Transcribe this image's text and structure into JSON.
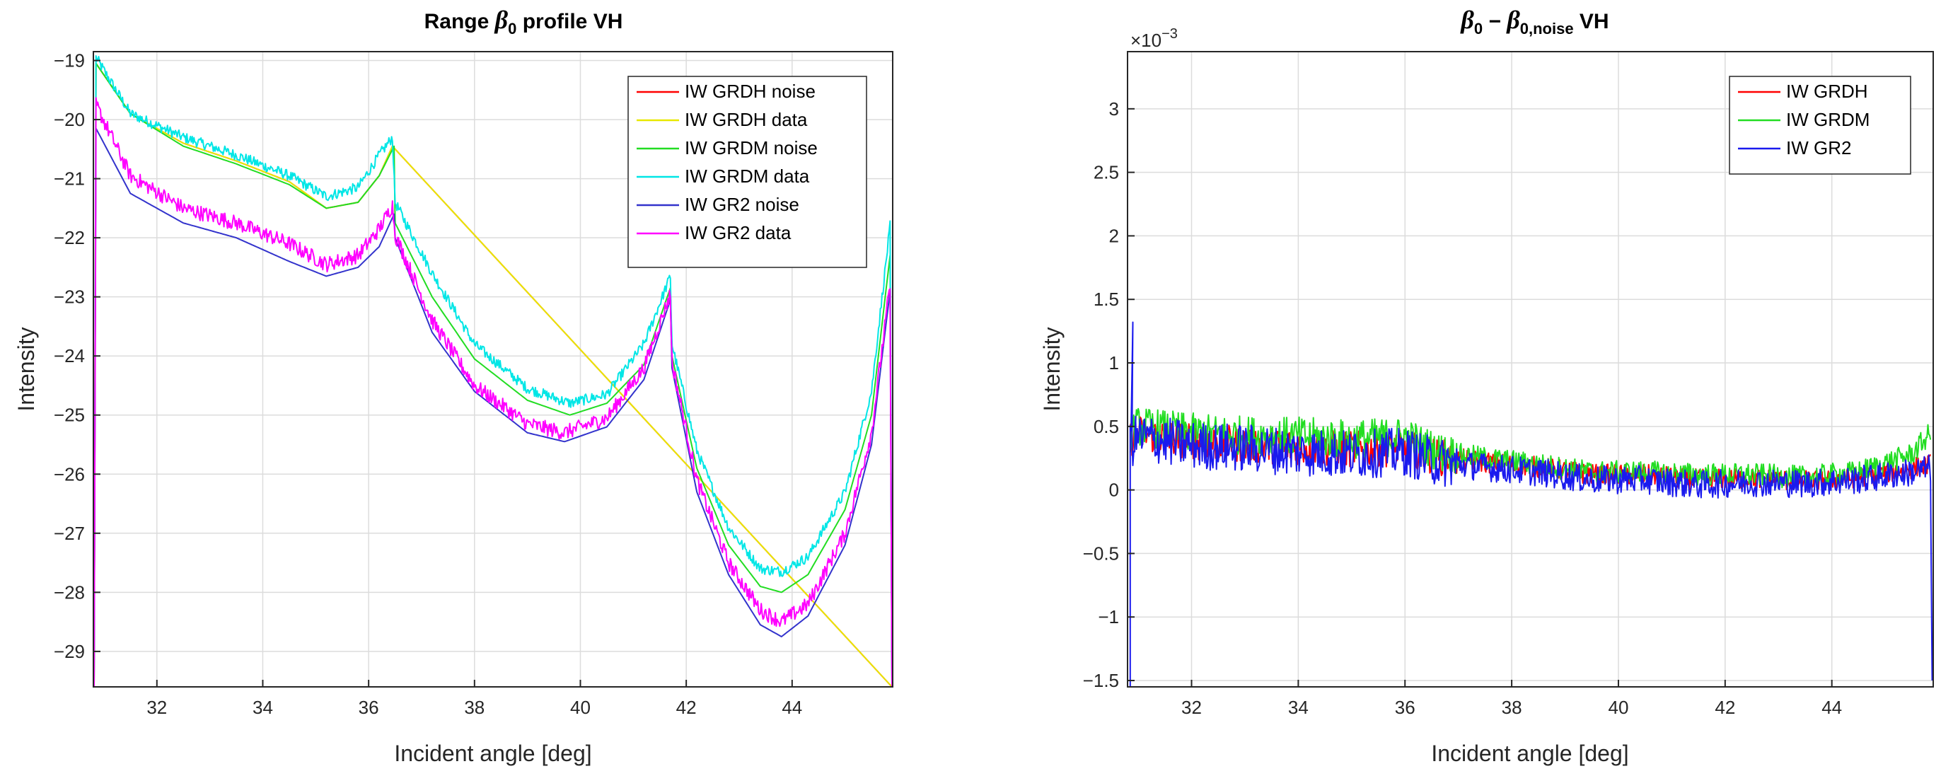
{
  "chart_data": [
    {
      "type": "line",
      "title_prefix": "Range ",
      "title_symbol": "β",
      "title_subscript": "0",
      "title_suffix": " profile VH",
      "xlabel": "Incident angle [deg]",
      "ylabel": "Intensity",
      "xlim": [
        30.8,
        45.9
      ],
      "ylim": [
        -29.6,
        -18.85
      ],
      "xticks": [
        32,
        34,
        36,
        38,
        40,
        42,
        44
      ],
      "yticks": [
        -19,
        -20,
        -21,
        -22,
        -23,
        -24,
        -25,
        -26,
        -27,
        -28,
        -29
      ],
      "xtick_labels": [
        "32",
        "34",
        "36",
        "38",
        "40",
        "42",
        "44"
      ],
      "ytick_labels": [
        "−19",
        "−20",
        "−21",
        "−22",
        "−23",
        "−24",
        "−25",
        "−26",
        "−27",
        "−28",
        "−29"
      ],
      "grid": true,
      "legend_position": "top-right",
      "series": [
        {
          "name": "IW GRDH noise",
          "color": "#ff0000",
          "noisy": false,
          "x": [
            30.85,
            31.5,
            32.5,
            33.5,
            34.5,
            35.2,
            35.8,
            36.2,
            36.45
          ],
          "y": [
            -19.05,
            -19.9,
            -20.4,
            -20.7,
            -21.05,
            -21.5,
            -21.4,
            -20.95,
            -20.45
          ]
        },
        {
          "name": "IW GRDH data",
          "color": "#e8e800",
          "noisy": false,
          "x": [
            30.85,
            31.5,
            32.5,
            33.5,
            34.5,
            35.2,
            35.8,
            36.2,
            36.45
          ],
          "y": [
            -19.05,
            -19.9,
            -20.4,
            -20.7,
            -21.05,
            -21.5,
            -21.4,
            -20.95,
            -20.45
          ]
        },
        {
          "name": "IW GRDM noise",
          "color": "#22dd22",
          "noisy": false,
          "x": [
            30.85,
            31.5,
            32.5,
            33.5,
            34.5,
            35.2,
            35.8,
            36.2,
            36.48,
            36.5,
            37.2,
            38.0,
            39.0,
            39.8,
            40.5,
            41.2,
            41.7,
            41.73,
            42.2,
            42.8,
            43.4,
            43.8,
            44.3,
            45.0,
            45.5,
            45.85
          ],
          "y": [
            -19.05,
            -19.9,
            -20.45,
            -20.75,
            -21.1,
            -21.5,
            -21.4,
            -20.95,
            -20.45,
            -21.75,
            -23.0,
            -24.05,
            -24.75,
            -25.0,
            -24.8,
            -24.15,
            -22.85,
            -24.0,
            -25.9,
            -27.2,
            -27.9,
            -28.0,
            -27.7,
            -26.6,
            -25.0,
            -22.3
          ]
        },
        {
          "name": "IW GRDM data",
          "color": "#00e6e6",
          "noisy": true,
          "amp": 0.09,
          "x": [
            30.85,
            31.5,
            32.5,
            33.5,
            34.5,
            35.2,
            35.8,
            36.2,
            36.45,
            36.5,
            37.2,
            38.0,
            39.0,
            39.8,
            40.5,
            41.2,
            41.7,
            41.73,
            42.2,
            42.8,
            43.4,
            43.8,
            44.3,
            45.0,
            45.5,
            45.85
          ],
          "y": [
            -18.95,
            -19.9,
            -20.3,
            -20.6,
            -20.95,
            -21.3,
            -21.15,
            -20.6,
            -20.3,
            -21.4,
            -22.6,
            -23.8,
            -24.55,
            -24.8,
            -24.65,
            -23.8,
            -22.65,
            -23.8,
            -25.6,
            -26.9,
            -27.6,
            -27.65,
            -27.4,
            -26.3,
            -24.6,
            -21.8
          ]
        },
        {
          "name": "IW GR2 noise",
          "color": "#3333cc",
          "noisy": false,
          "x": [
            30.85,
            31.5,
            32.5,
            33.5,
            34.5,
            35.2,
            35.8,
            36.2,
            36.48,
            36.5,
            37.2,
            38.0,
            39.0,
            39.7,
            40.5,
            41.2,
            41.7,
            41.73,
            42.2,
            42.8,
            43.4,
            43.8,
            44.3,
            45.0,
            45.5,
            45.85
          ],
          "y": [
            -20.15,
            -21.25,
            -21.75,
            -22.0,
            -22.4,
            -22.65,
            -22.5,
            -22.15,
            -21.6,
            -22.0,
            -23.6,
            -24.6,
            -25.3,
            -25.45,
            -25.2,
            -24.4,
            -23.05,
            -24.2,
            -26.3,
            -27.7,
            -28.55,
            -28.75,
            -28.4,
            -27.2,
            -25.5,
            -22.9
          ]
        },
        {
          "name": "IW GR2 data",
          "color": "#ff00ff",
          "noisy": true,
          "amp": 0.13,
          "x": [
            30.85,
            31.5,
            32.5,
            33.5,
            34.5,
            35.2,
            35.8,
            36.2,
            36.45,
            36.5,
            37.2,
            38.0,
            39.0,
            39.7,
            40.5,
            41.2,
            41.7,
            41.73,
            42.2,
            42.8,
            43.4,
            43.8,
            44.3,
            45.0,
            45.5,
            45.85
          ],
          "y": [
            -19.75,
            -20.95,
            -21.5,
            -21.75,
            -22.1,
            -22.45,
            -22.3,
            -21.85,
            -21.45,
            -21.95,
            -23.4,
            -24.5,
            -25.15,
            -25.3,
            -25.05,
            -24.2,
            -22.95,
            -24.1,
            -26.1,
            -27.5,
            -28.3,
            -28.5,
            -28.2,
            -27.0,
            -25.3,
            -22.8
          ]
        }
      ]
    },
    {
      "type": "line",
      "title_symbol": "β",
      "title_subscript": "0",
      "title_minus": " − ",
      "title_symbol2": "β",
      "title_subscript2": "0,noise",
      "title_suffix": " VH",
      "xlabel": "Incident angle [deg]",
      "ylabel": "Intensity",
      "exponent_label": "×10",
      "exponent_power": "−3",
      "xlim": [
        30.8,
        45.9
      ],
      "ylim": [
        -1.55,
        3.45
      ],
      "xticks": [
        32,
        34,
        36,
        38,
        40,
        42,
        44
      ],
      "yticks": [
        3,
        2.5,
        2,
        1.5,
        1,
        0.5,
        0,
        -0.5,
        -1,
        -1.5
      ],
      "xtick_labels": [
        "32",
        "34",
        "36",
        "38",
        "40",
        "42",
        "44"
      ],
      "ytick_labels": [
        "3",
        "2.5",
        "2",
        "1.5",
        "1",
        "0.5",
        "0",
        "−0.5",
        "−1",
        "−1.5"
      ],
      "grid": true,
      "legend_position": "top-right",
      "series": [
        {
          "name": "IW GRDH",
          "color": "#ff0000",
          "noisy": true,
          "amp": 0.12,
          "x": [
            30.85,
            31.0,
            32.0,
            33.0,
            34.0,
            35.0,
            36.0,
            36.6,
            37.5,
            38.5,
            39.5,
            40.5,
            41.5,
            42.5,
            43.5,
            44.5,
            45.5,
            45.85
          ],
          "y": [
            0.4,
            0.45,
            0.38,
            0.36,
            0.34,
            0.32,
            0.33,
            0.26,
            0.22,
            0.18,
            0.12,
            0.12,
            0.08,
            0.09,
            0.07,
            0.1,
            0.17,
            0.2
          ]
        },
        {
          "name": "IW GRDM",
          "color": "#22dd22",
          "noisy": true,
          "amp": 0.13,
          "x": [
            30.85,
            31.0,
            32.0,
            33.0,
            34.0,
            35.0,
            36.0,
            36.6,
            37.5,
            38.5,
            39.5,
            40.5,
            41.5,
            42.5,
            43.5,
            44.5,
            45.5,
            45.85
          ],
          "y": [
            0.45,
            0.5,
            0.45,
            0.43,
            0.42,
            0.4,
            0.42,
            0.3,
            0.25,
            0.2,
            0.14,
            0.14,
            0.12,
            0.12,
            0.1,
            0.14,
            0.28,
            0.45
          ]
        },
        {
          "name": "IW GR2",
          "color": "#1a1aee",
          "noisy": true,
          "amp": 0.16,
          "x": [
            30.85,
            31.0,
            32.0,
            33.0,
            34.0,
            35.0,
            36.0,
            36.6,
            37.5,
            38.5,
            39.5,
            40.5,
            41.5,
            42.5,
            43.5,
            44.5,
            45.5,
            45.85
          ],
          "y": [
            0.35,
            0.42,
            0.35,
            0.33,
            0.3,
            0.28,
            0.3,
            0.22,
            0.18,
            0.14,
            0.08,
            0.08,
            0.04,
            0.06,
            0.05,
            0.08,
            0.14,
            0.17
          ]
        }
      ]
    }
  ]
}
